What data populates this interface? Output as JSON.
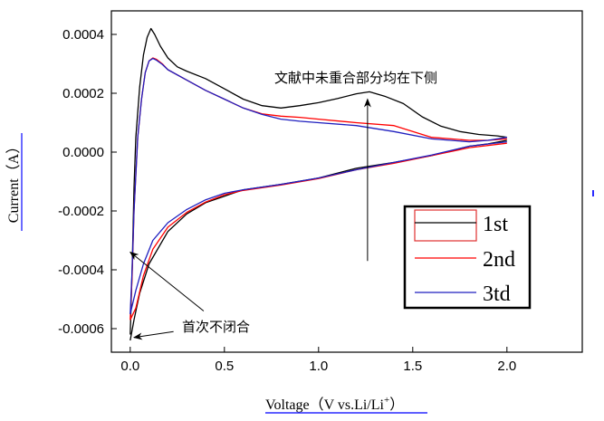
{
  "chart_data": {
    "type": "line",
    "xlabel": "Voltage（V vs.Li/Li",
    "xlabel_sup": "+",
    "xlabel_close": "）",
    "ylabel": "Current（A）",
    "xlim": [
      -0.1,
      2.4
    ],
    "ylim": [
      -0.00068,
      0.00048
    ],
    "x_ticks": [
      0.0,
      0.5,
      1.0,
      1.5,
      2.0
    ],
    "x_tick_labels": [
      "0.0",
      "0.5",
      "1.0",
      "1.5",
      "2.0"
    ],
    "y_ticks": [
      0.0004,
      0.0002,
      0.0,
      -0.0002,
      -0.0004,
      -0.0006
    ],
    "y_tick_labels": [
      "0.0004",
      "0.0002",
      "0.0000",
      "-0.0002",
      "-0.0004",
      "-0.0006"
    ],
    "grid": false,
    "legend_position": "lower-right",
    "annotations": [
      {
        "text": "文献中未重合部分均在下侧",
        "arrow_from": [
          1.26,
          -0.00037
        ],
        "arrow_to": [
          1.26,
          0.00018
        ]
      },
      {
        "text": "首次不闭合",
        "arrows": [
          {
            "from": [
              0.39,
              -0.00054
            ],
            "to": [
              0.0,
              -0.00034
            ]
          },
          {
            "from": [
              0.23,
              -0.00061
            ],
            "to": [
              0.02,
              -0.00063
            ]
          }
        ]
      }
    ],
    "series": [
      {
        "name": "1st",
        "color": "#000000",
        "anodic": [
          [
            0.0,
            -0.00062
          ],
          [
            0.01,
            -0.0004
          ],
          [
            0.02,
            -0.00012
          ],
          [
            0.03,
            5e-05
          ],
          [
            0.05,
            0.00022
          ],
          [
            0.07,
            0.00033
          ],
          [
            0.09,
            0.00039
          ],
          [
            0.11,
            0.00042
          ],
          [
            0.13,
            0.0004
          ],
          [
            0.16,
            0.00036
          ],
          [
            0.2,
            0.00032
          ],
          [
            0.25,
            0.00029
          ],
          [
            0.3,
            0.000275
          ],
          [
            0.4,
            0.00025
          ],
          [
            0.5,
            0.000215
          ],
          [
            0.6,
            0.00018
          ],
          [
            0.7,
            0.000158
          ],
          [
            0.8,
            0.00015
          ],
          [
            0.9,
            0.000158
          ],
          [
            1.0,
            0.000168
          ],
          [
            1.1,
            0.000182
          ],
          [
            1.2,
            0.000198
          ],
          [
            1.27,
            0.000205
          ],
          [
            1.35,
            0.00019
          ],
          [
            1.45,
            0.000165
          ],
          [
            1.55,
            0.00012
          ],
          [
            1.65,
            8.8e-05
          ],
          [
            1.75,
            7e-05
          ],
          [
            1.85,
            6e-05
          ],
          [
            1.95,
            5.5e-05
          ],
          [
            2.0,
            5e-05
          ]
        ],
        "cathodic": [
          [
            2.0,
            4e-05
          ],
          [
            1.9,
            2.8e-05
          ],
          [
            1.8,
            2e-05
          ],
          [
            1.6,
            -1.2e-05
          ],
          [
            1.4,
            -3.5e-05
          ],
          [
            1.2,
            -5.5e-05
          ],
          [
            1.0,
            -8.8e-05
          ],
          [
            0.8,
            -0.00011
          ],
          [
            0.6,
            -0.000128
          ],
          [
            0.5,
            -0.00015
          ],
          [
            0.4,
            -0.000172
          ],
          [
            0.3,
            -0.00021
          ],
          [
            0.2,
            -0.00027
          ],
          [
            0.1,
            -0.00038
          ],
          [
            0.05,
            -0.00048
          ],
          [
            0.02,
            -0.00057
          ],
          [
            0.0,
            -0.00064
          ]
        ]
      },
      {
        "name": "2nd",
        "color": "#ff0000",
        "anodic": [
          [
            0.0,
            -0.00057
          ],
          [
            0.01,
            -0.00042
          ],
          [
            0.02,
            -0.0002
          ],
          [
            0.04,
            5e-05
          ],
          [
            0.06,
            0.00018
          ],
          [
            0.08,
            0.00027
          ],
          [
            0.1,
            0.00031
          ],
          [
            0.12,
            0.00032
          ],
          [
            0.14,
            0.000315
          ],
          [
            0.17,
            0.0003
          ],
          [
            0.2,
            0.00028
          ],
          [
            0.3,
            0.000245
          ],
          [
            0.4,
            0.00021
          ],
          [
            0.5,
            0.00018
          ],
          [
            0.6,
            0.00015
          ],
          [
            0.7,
            0.00013
          ],
          [
            0.8,
            0.000122
          ],
          [
            0.9,
            0.000118
          ],
          [
            1.0,
            0.000112
          ],
          [
            1.2,
            0.0001
          ],
          [
            1.4,
            9e-05
          ],
          [
            1.6,
            5e-05
          ],
          [
            1.8,
            4e-05
          ],
          [
            1.9,
            4e-05
          ],
          [
            2.0,
            4.5e-05
          ]
        ],
        "cathodic": [
          [
            2.0,
            3e-05
          ],
          [
            1.8,
            1.5e-05
          ],
          [
            1.6,
            -1.2e-05
          ],
          [
            1.4,
            -3.8e-05
          ],
          [
            1.2,
            -6e-05
          ],
          [
            1.0,
            -9e-05
          ],
          [
            0.8,
            -0.000112
          ],
          [
            0.6,
            -0.00013
          ],
          [
            0.5,
            -0.000145
          ],
          [
            0.4,
            -0.00017
          ],
          [
            0.3,
            -0.000205
          ],
          [
            0.2,
            -0.000255
          ],
          [
            0.12,
            -0.00033
          ],
          [
            0.07,
            -0.00042
          ],
          [
            0.03,
            -0.00053
          ],
          [
            0.0,
            -0.00057
          ]
        ]
      },
      {
        "name": "3td",
        "color": "#1f1fbf",
        "anodic": [
          [
            0.0,
            -0.00055
          ],
          [
            0.01,
            -0.0004
          ],
          [
            0.02,
            -0.0002
          ],
          [
            0.04,
            5e-05
          ],
          [
            0.06,
            0.00018
          ],
          [
            0.08,
            0.00027
          ],
          [
            0.1,
            0.00031
          ],
          [
            0.12,
            0.000318
          ],
          [
            0.14,
            0.000312
          ],
          [
            0.17,
            0.000298
          ],
          [
            0.2,
            0.00028
          ],
          [
            0.3,
            0.000245
          ],
          [
            0.4,
            0.00021
          ],
          [
            0.5,
            0.00018
          ],
          [
            0.6,
            0.00015
          ],
          [
            0.7,
            0.000128
          ],
          [
            0.8,
            0.000112
          ],
          [
            0.9,
            0.000105
          ],
          [
            1.0,
            0.0001
          ],
          [
            1.2,
            9e-05
          ],
          [
            1.4,
            7e-05
          ],
          [
            1.6,
            4.5e-05
          ],
          [
            1.8,
            3.5e-05
          ],
          [
            1.9,
            4e-05
          ],
          [
            2.0,
            5e-05
          ]
        ],
        "cathodic": [
          [
            2.0,
            3.5e-05
          ],
          [
            1.8,
            2e-05
          ],
          [
            1.6,
            -1e-05
          ],
          [
            1.4,
            -3.5e-05
          ],
          [
            1.2,
            -6e-05
          ],
          [
            1.0,
            -8.8e-05
          ],
          [
            0.8,
            -0.00011
          ],
          [
            0.6,
            -0.000128
          ],
          [
            0.5,
            -0.00014
          ],
          [
            0.4,
            -0.000162
          ],
          [
            0.3,
            -0.000195
          ],
          [
            0.2,
            -0.00024
          ],
          [
            0.12,
            -0.0003
          ],
          [
            0.07,
            -0.00038
          ],
          [
            0.03,
            -0.00047
          ],
          [
            0.0,
            -0.00055
          ]
        ]
      }
    ]
  }
}
